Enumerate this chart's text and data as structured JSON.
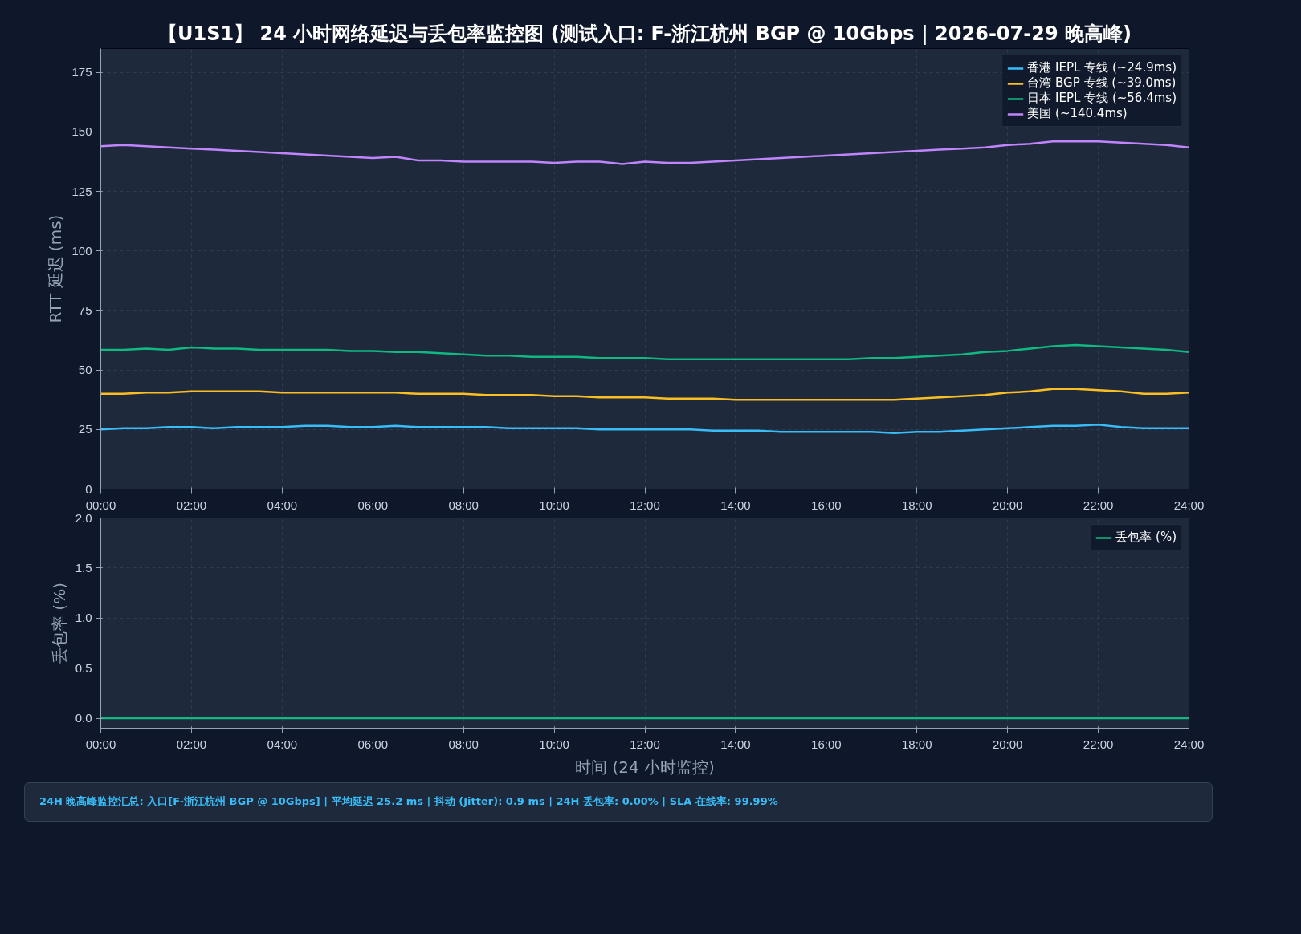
{
  "chart_data": [
    {
      "type": "line",
      "title": "【U1S1】 24 小时网络延迟与丢包率监控图 (测试入口: F-浙江杭州 BGP @ 10Gbps | 2026-07-29 晚高峰)",
      "ylabel": "RTT 延迟 (ms)",
      "x": [
        0,
        0.5,
        1,
        1.5,
        2,
        2.5,
        3,
        3.5,
        4,
        4.5,
        5,
        5.5,
        6,
        6.5,
        7,
        7.5,
        8,
        8.5,
        9,
        9.5,
        10,
        10.5,
        11,
        11.5,
        12,
        12.5,
        13,
        13.5,
        14,
        14.5,
        15,
        15.5,
        16,
        16.5,
        17,
        17.5,
        18,
        18.5,
        19,
        19.5,
        20,
        20.5,
        21,
        21.5,
        22,
        22.5,
        23,
        23.5,
        24
      ],
      "series": [
        {
          "name": "香港 IEPL 专线 (~24.9ms)",
          "color": "#38bdf8",
          "values": [
            25,
            25.5,
            25.5,
            26,
            26,
            25.5,
            26,
            26,
            26,
            26.5,
            26.5,
            26,
            26,
            26.5,
            26,
            26,
            26,
            26,
            25.5,
            25.5,
            25.5,
            25.5,
            25,
            25,
            25,
            25,
            25,
            24.5,
            24.5,
            24.5,
            24,
            24,
            24,
            24,
            24,
            23.5,
            24,
            24,
            24.5,
            25,
            25.5,
            26,
            26.5,
            26.5,
            27,
            26,
            25.5,
            25.5,
            25.5
          ]
        },
        {
          "name": "台湾 BGP 专线 (~39.0ms)",
          "color": "#fbbf24",
          "values": [
            40,
            40,
            40.5,
            40.5,
            41,
            41,
            41,
            41,
            40.5,
            40.5,
            40.5,
            40.5,
            40.5,
            40.5,
            40,
            40,
            40,
            39.5,
            39.5,
            39.5,
            39,
            39,
            38.5,
            38.5,
            38.5,
            38,
            38,
            38,
            37.5,
            37.5,
            37.5,
            37.5,
            37.5,
            37.5,
            37.5,
            37.5,
            38,
            38.5,
            39,
            39.5,
            40.5,
            41,
            42,
            42,
            41.5,
            41,
            40,
            40,
            40.5
          ]
        },
        {
          "name": "日本 IEPL 专线 (~56.4ms)",
          "color": "#10b981",
          "values": [
            58.5,
            58.5,
            59,
            58.5,
            59.5,
            59,
            59,
            58.5,
            58.5,
            58.5,
            58.5,
            58,
            58,
            57.5,
            57.5,
            57,
            56.5,
            56,
            56,
            55.5,
            55.5,
            55.5,
            55,
            55,
            55,
            54.5,
            54.5,
            54.5,
            54.5,
            54.5,
            54.5,
            54.5,
            54.5,
            54.5,
            55,
            55,
            55.5,
            56,
            56.5,
            57.5,
            58,
            59,
            60,
            60.5,
            60,
            59.5,
            59,
            58.5,
            57.5
          ]
        },
        {
          "name": "美国 (~140.4ms)",
          "color": "#c084fc",
          "values": [
            144,
            144.5,
            144,
            143.5,
            143,
            142.5,
            142,
            141.5,
            141,
            140.5,
            140,
            139.5,
            139,
            139.5,
            138,
            138,
            137.5,
            137.5,
            137.5,
            137.5,
            137,
            137.5,
            137.5,
            136.5,
            137.5,
            137,
            137,
            137.5,
            138,
            138.5,
            139,
            139.5,
            140,
            140.5,
            141,
            141.5,
            142,
            142.5,
            143,
            143.5,
            144.5,
            145,
            146,
            146,
            146,
            145.5,
            145,
            144.5,
            143.5
          ]
        }
      ],
      "xlim": [
        0,
        24
      ],
      "ylim": [
        0,
        185
      ],
      "yticks": [
        0,
        25,
        50,
        75,
        100,
        125,
        150,
        175
      ],
      "xticks": [
        {
          "value": 0,
          "label": "00:00"
        },
        {
          "value": 2,
          "label": "02:00"
        },
        {
          "value": 4,
          "label": "04:00"
        },
        {
          "value": 6,
          "label": "06:00"
        },
        {
          "value": 8,
          "label": "08:00"
        },
        {
          "value": 10,
          "label": "10:00"
        },
        {
          "value": 12,
          "label": "12:00"
        },
        {
          "value": 14,
          "label": "14:00"
        },
        {
          "value": 16,
          "label": "16:00"
        },
        {
          "value": 18,
          "label": "18:00"
        },
        {
          "value": 20,
          "label": "20:00"
        },
        {
          "value": 22,
          "label": "22:00"
        },
        {
          "value": 24,
          "label": "24:00"
        }
      ],
      "grid": true,
      "legend": "top right",
      "line_style": "solid"
    },
    {
      "type": "line",
      "xlabel": "时间 (24 小时监控)",
      "ylabel": "丢包率 (%)",
      "x": [
        0,
        24
      ],
      "series": [
        {
          "name": "丢包率 (%)",
          "color": "#10b981",
          "values": [
            0,
            0
          ]
        }
      ],
      "xlim": [
        0,
        24
      ],
      "ylim": [
        -0.1,
        2.0
      ],
      "yticks": [
        {
          "value": 0,
          "label": "0.0"
        },
        {
          "value": 0.5,
          "label": "0.5"
        },
        {
          "value": 1,
          "label": "1.0"
        },
        {
          "value": 1.5,
          "label": "1.5"
        },
        {
          "value": 2,
          "label": "2.0"
        }
      ],
      "xticks": [
        {
          "value": 0,
          "label": "00:00"
        },
        {
          "value": 2,
          "label": "02:00"
        },
        {
          "value": 4,
          "label": "04:00"
        },
        {
          "value": 6,
          "label": "06:00"
        },
        {
          "value": 8,
          "label": "08:00"
        },
        {
          "value": 10,
          "label": "10:00"
        },
        {
          "value": 12,
          "label": "12:00"
        },
        {
          "value": 14,
          "label": "14:00"
        },
        {
          "value": 16,
          "label": "16:00"
        },
        {
          "value": 18,
          "label": "18:00"
        },
        {
          "value": 20,
          "label": "20:00"
        },
        {
          "value": 22,
          "label": "22:00"
        },
        {
          "value": 24,
          "label": "24:00"
        }
      ],
      "grid": true,
      "legend": "top right",
      "line_style": "solid",
      "annotations": [
        "24H 晚高峰监控汇总: 入口[F-浙江杭州 BGP @ 10Gbps] | 平均延迟 25.2 ms | 抖动 (Jitter): 0.9 ms | 24H 丢包率: 0.00% | SLA 在线率: 99.99%"
      ]
    }
  ]
}
